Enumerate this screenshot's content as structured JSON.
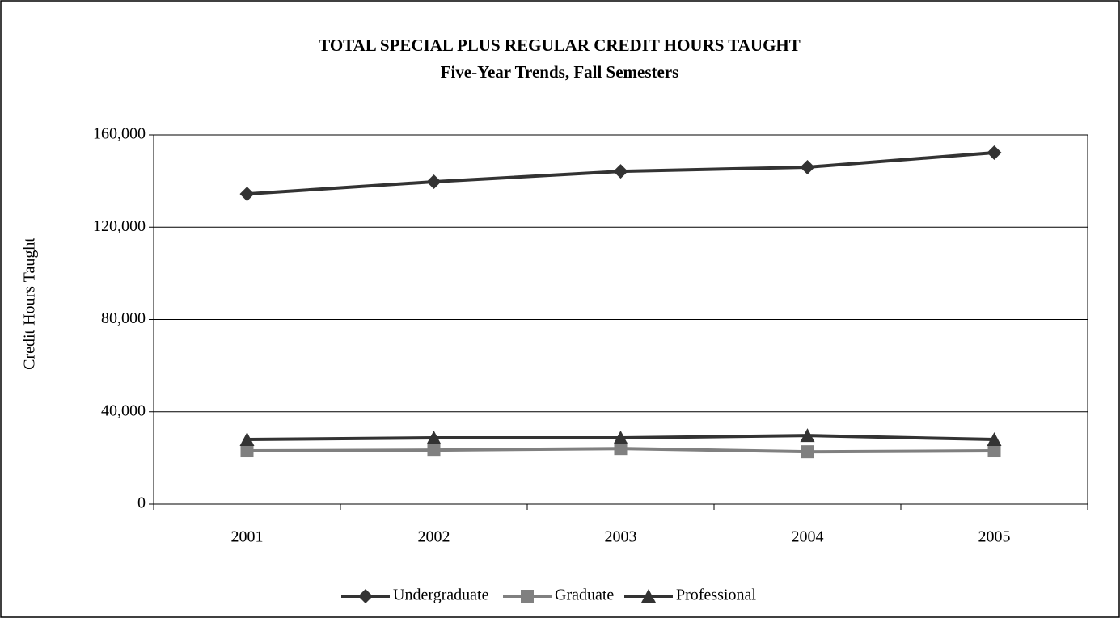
{
  "chart_data": {
    "type": "line",
    "title": "TOTAL SPECIAL PLUS REGULAR CREDIT HOURS TAUGHT",
    "subtitle": "Five-Year Trends, Fall Semesters",
    "y_label": "Credit Hours Taught",
    "categories": [
      "2001",
      "2002",
      "2003",
      "2004",
      "2005"
    ],
    "series": [
      {
        "name": "Undergraduate",
        "color": "#333333",
        "marker": "diamond",
        "values": [
          134400,
          139700,
          144200,
          146000,
          152300
        ]
      },
      {
        "name": "Graduate",
        "color": "#808080",
        "marker": "square",
        "values": [
          23100,
          23400,
          24100,
          22700,
          23100
        ]
      },
      {
        "name": "Professional",
        "color": "#333333",
        "marker": "triangle",
        "values": [
          28000,
          28700,
          28700,
          29700,
          28000
        ]
      }
    ],
    "ylim": [
      0,
      160000
    ],
    "yticks": [
      0,
      {
        "value": 40000,
        "label": "40,000"
      },
      {
        "value": 80000,
        "label": "80,000"
      },
      {
        "value": 120000,
        "label": "120,000"
      },
      {
        "value": 160000,
        "label": "160,000"
      }
    ],
    "grid": true,
    "legend": "bottom"
  }
}
